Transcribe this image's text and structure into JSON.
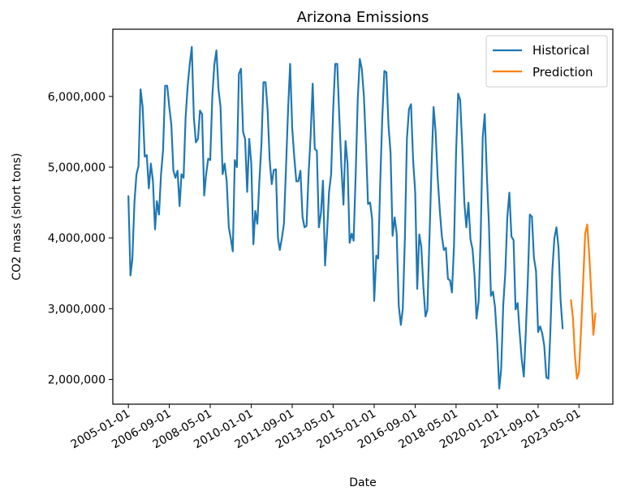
{
  "chart_data": {
    "type": "line",
    "title": "Arizona Emissions",
    "xlabel": "Date",
    "ylabel": "CO2 mass (short tons)",
    "x_ticks": [
      "2005-01-01",
      "2006-09-01",
      "2008-05-01",
      "2010-01-01",
      "2011-09-01",
      "2013-05-01",
      "2015-01-01",
      "2016-09-01",
      "2018-05-01",
      "2020-01-01",
      "2021-09-01",
      "2023-05-01"
    ],
    "y_ticks": [
      "2,000,000",
      "3,000,000",
      "4,000,000",
      "5,000,000",
      "6,000,000"
    ],
    "y_tick_values": [
      2000000,
      3000000,
      4000000,
      5000000,
      6000000
    ],
    "xlim": [
      "2004-05-15",
      "2024-09-15"
    ],
    "ylim": [
      1650000,
      6950000
    ],
    "grid": false,
    "legend": "top-right",
    "series": [
      {
        "name": "Historical",
        "color": "#1f77b4",
        "start": "2005-01",
        "values": [
          4600000,
          3470000,
          3700000,
          4500000,
          4900000,
          5020000,
          6100000,
          5850000,
          5150000,
          5170000,
          4700000,
          5050000,
          4800000,
          4120000,
          4520000,
          4330000,
          4900000,
          5250000,
          6150000,
          6150000,
          5850000,
          5600000,
          4950000,
          4850000,
          4950000,
          4450000,
          4900000,
          4850000,
          5700000,
          6150000,
          6450000,
          6700000,
          5700000,
          5350000,
          5400000,
          5800000,
          5750000,
          4600000,
          4900000,
          5120000,
          5100000,
          6000000,
          6450000,
          6650000,
          6100000,
          5850000,
          4900000,
          5050000,
          4800000,
          4150000,
          4000000,
          3810000,
          5100000,
          5000000,
          6320000,
          6390000,
          5500000,
          5400000,
          4650000,
          5400000,
          5050000,
          3910000,
          4380000,
          4200000,
          4800000,
          5330000,
          6200000,
          6200000,
          5800000,
          5100000,
          4760000,
          4960000,
          4970000,
          4000000,
          3830000,
          4000000,
          4200000,
          5000000,
          5800000,
          6460000,
          5550000,
          5150000,
          4800000,
          4800000,
          4950000,
          4300000,
          4150000,
          4170000,
          4900000,
          5450000,
          6180000,
          5260000,
          5230000,
          4150000,
          4350000,
          4810000,
          3610000,
          4100000,
          4650000,
          4900000,
          5800000,
          6460000,
          6460000,
          5700000,
          5000000,
          4470000,
          5370000,
          5050000,
          3930000,
          4060000,
          3960000,
          4900000,
          5950000,
          6530000,
          6390000,
          6000000,
          5300000,
          4480000,
          4500000,
          4270000,
          3110000,
          3750000,
          3710000,
          4800000,
          5700000,
          6360000,
          6340000,
          5600000,
          5200000,
          4030000,
          4290000,
          4060000,
          3040000,
          2770000,
          3000000,
          4000000,
          5400000,
          5820000,
          5890000,
          5100000,
          4650000,
          3280000,
          4050000,
          3870000,
          3300000,
          2890000,
          2980000,
          4000000,
          4980000,
          5850000,
          5500000,
          4850000,
          4400000,
          4030000,
          3830000,
          3860000,
          3420000,
          3400000,
          3230000,
          3900000,
          5200000,
          6040000,
          5950000,
          5300000,
          4500000,
          4150000,
          4500000,
          3980000,
          3840000,
          3450000,
          2860000,
          3100000,
          4000000,
          5420000,
          5750000,
          4900000,
          4200000,
          3180000,
          3240000,
          3020000,
          2550000,
          1870000,
          2140000,
          3050000,
          3500000,
          4300000,
          4640000,
          4020000,
          3970000,
          2990000,
          3080000,
          2660000,
          2280000,
          2040000,
          2640000,
          3400000,
          4330000,
          4300000,
          3720000,
          3530000,
          2670000,
          2750000,
          2650000,
          2480000,
          2030000,
          2010000,
          2650000,
          3550000,
          4000000,
          4150000,
          3860000,
          3120000,
          2710000
        ]
      },
      {
        "name": "Prediction",
        "color": "#ff7f0e",
        "start": "2023-01",
        "values": [
          3130000,
          2860000,
          2350000,
          2010000,
          2100000,
          2700000,
          3350000,
          4060000,
          4190000,
          3750000,
          3200000,
          2630000,
          2940000
        ]
      }
    ]
  }
}
